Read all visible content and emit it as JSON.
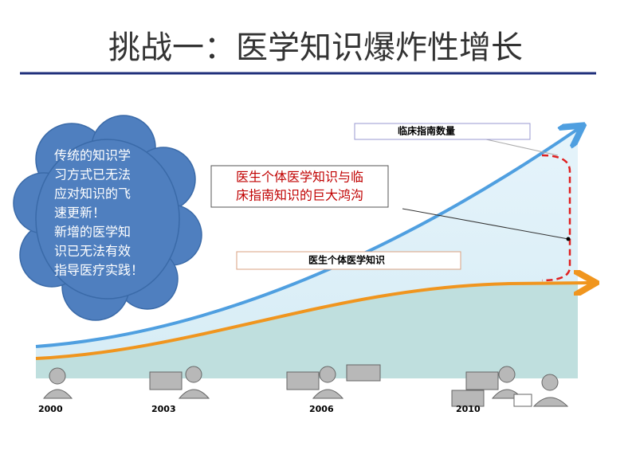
{
  "header": {
    "title": "挑战一：医学知识爆炸性增长"
  },
  "cloud": {
    "lines": [
      "传统的知识学",
      "习方式已无法",
      "应对知识的飞",
      "速更新！",
      "新增的医学知",
      "识已无法有效",
      "指导医疗实践！"
    ]
  },
  "labels": {
    "guidelines": "临床指南数量",
    "individual": "医生个体医学知识",
    "gap": [
      "医生个体医学知识与临",
      "床指南知识的巨大鸿沟"
    ]
  },
  "timeline": [
    "2000",
    "2003",
    "2006",
    "2010"
  ]
}
